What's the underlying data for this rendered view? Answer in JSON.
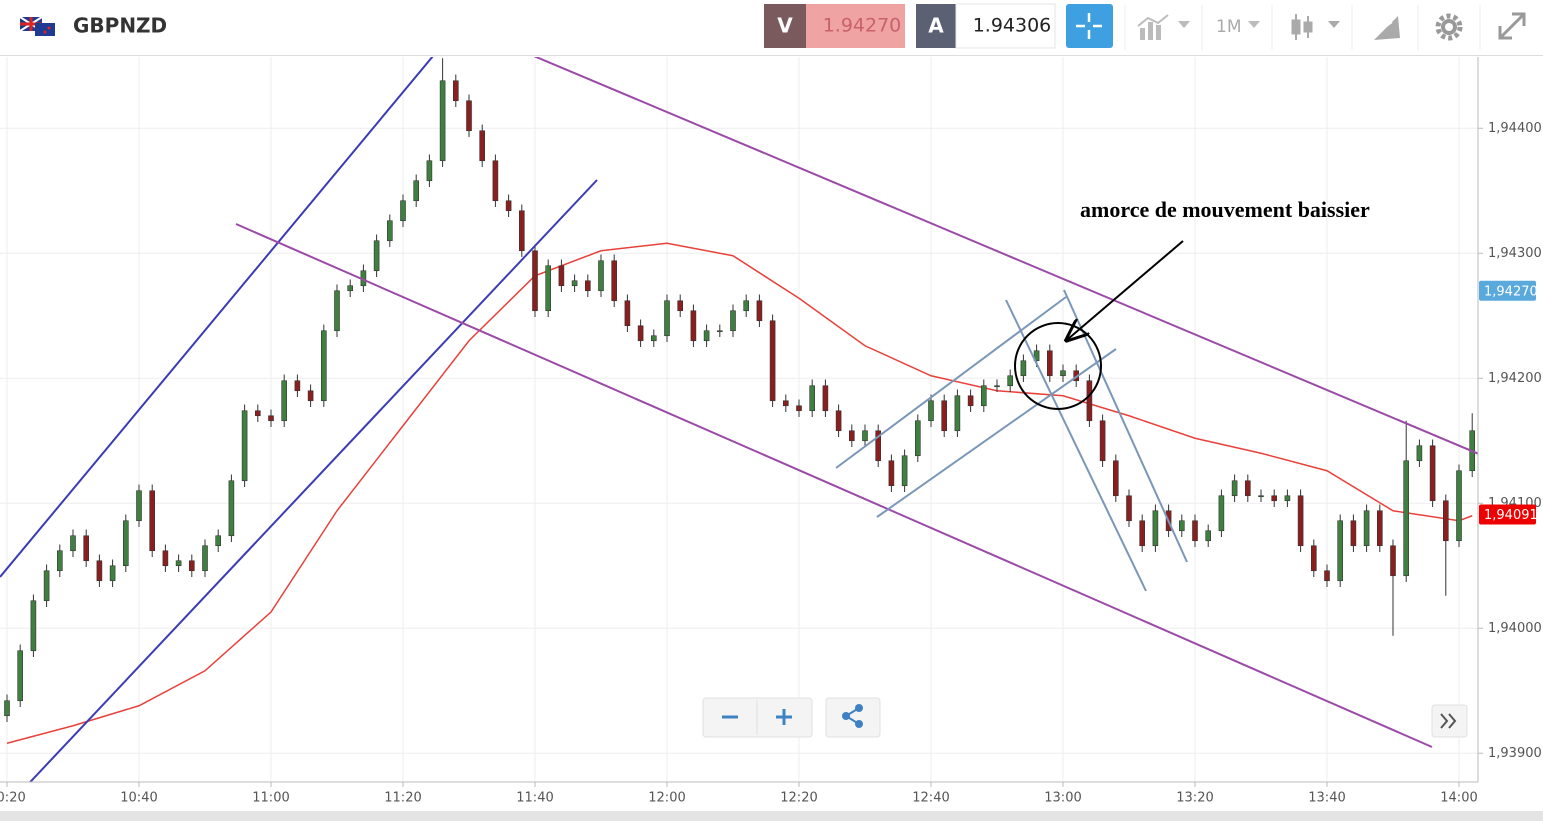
{
  "toolbar": {
    "symbol": "GBPNZD",
    "sell_label": "V",
    "sell_price": "1.94270",
    "buy_label": "A",
    "buy_price": "1.94306",
    "timeframe": "1M"
  },
  "chart_data": {
    "type": "candlestick",
    "annotation": "amorce de mouvement baissier",
    "x": [
      "10:20",
      "10:22",
      "10:24",
      "10:26",
      "10:28",
      "10:30",
      "10:32",
      "10:34",
      "10:36",
      "10:38",
      "10:40",
      "10:42",
      "10:44",
      "10:46",
      "10:48",
      "10:50",
      "10:52",
      "10:54",
      "10:56",
      "10:58",
      "11:00",
      "11:02",
      "11:04",
      "11:06",
      "11:08",
      "11:10",
      "11:12",
      "11:14",
      "11:16",
      "11:18",
      "11:20",
      "11:22",
      "11:24",
      "11:26",
      "11:28",
      "11:30",
      "11:32",
      "11:34",
      "11:36",
      "11:38",
      "11:40",
      "11:42",
      "11:44",
      "11:46",
      "11:48",
      "11:50",
      "11:52",
      "11:54",
      "11:56",
      "11:58",
      "12:00",
      "12:02",
      "12:04",
      "12:06",
      "12:08",
      "12:10",
      "12:12",
      "12:14",
      "12:16",
      "12:18",
      "12:20",
      "12:22",
      "12:24",
      "12:26",
      "12:28",
      "12:30",
      "12:32",
      "12:34",
      "12:36",
      "12:38",
      "12:40",
      "12:42",
      "12:44",
      "12:46",
      "12:48",
      "12:50",
      "12:52",
      "12:54",
      "12:56",
      "12:58",
      "13:00",
      "13:02",
      "13:04",
      "13:06",
      "13:08",
      "13:10",
      "13:12",
      "13:14",
      "13:16",
      "13:18",
      "13:20",
      "13:22",
      "13:24",
      "13:26",
      "13:28",
      "13:30",
      "13:32",
      "13:34",
      "13:36",
      "13:38",
      "13:40",
      "13:42",
      "13:44",
      "13:46",
      "13:48",
      "13:50",
      "13:52",
      "13:54",
      "13:56",
      "13:58",
      "14:00",
      "14:02"
    ],
    "open": [
      1.9393,
      1.93942,
      1.93982,
      1.94022,
      1.94046,
      1.94062,
      1.94074,
      1.94054,
      1.94038,
      1.9405,
      1.94086,
      1.9411,
      1.94062,
      1.9405,
      1.94054,
      1.94046,
      1.94066,
      1.94074,
      1.94118,
      1.94174,
      1.9417,
      1.94166,
      1.94198,
      1.9419,
      1.94182,
      1.94238,
      1.9427,
      1.94274,
      1.94286,
      1.9431,
      1.94326,
      1.94342,
      1.94358,
      1.94374,
      1.94438,
      1.94422,
      1.94398,
      1.94374,
      1.94342,
      1.94334,
      1.94302,
      1.94254,
      1.9429,
      1.94274,
      1.94278,
      1.9427,
      1.94294,
      1.94262,
      1.94242,
      1.9423,
      1.94234,
      1.94262,
      1.94254,
      1.9423,
      1.94238,
      1.94238,
      1.94254,
      1.94262,
      1.94246,
      1.94182,
      1.94178,
      1.94174,
      1.94194,
      1.94174,
      1.94158,
      1.9415,
      1.94158,
      1.94134,
      1.94114,
      1.94138,
      1.94166,
      1.94182,
      1.94158,
      1.94186,
      1.94178,
      1.94194,
      1.94194,
      1.94202,
      1.94214,
      1.94222,
      1.94202,
      1.94206,
      1.94198,
      1.94166,
      1.94134,
      1.94106,
      1.94086,
      1.94066,
      1.94094,
      1.94078,
      1.94086,
      1.9407,
      1.94078,
      1.94106,
      1.94118,
      1.94106,
      1.94106,
      1.94102,
      1.94106,
      1.94066,
      1.94046,
      1.94038,
      1.94086,
      1.94066,
      1.94094,
      1.94066,
      1.94042,
      1.94134,
      1.94146,
      1.94102,
      1.9407,
      1.94126
    ],
    "high": [
      1.93947,
      1.93987,
      1.94027,
      1.94051,
      1.94067,
      1.94079,
      1.94079,
      1.94059,
      1.94055,
      1.94091,
      1.94115,
      1.94115,
      1.94067,
      1.94059,
      1.94059,
      1.94071,
      1.94079,
      1.94123,
      1.94179,
      1.94179,
      1.94175,
      1.94203,
      1.94203,
      1.94195,
      1.94243,
      1.94275,
      1.94279,
      1.94291,
      1.94315,
      1.94331,
      1.94347,
      1.94363,
      1.94379,
      1.94456,
      1.94443,
      1.94427,
      1.94403,
      1.94379,
      1.94347,
      1.94339,
      1.94307,
      1.94295,
      1.94295,
      1.94283,
      1.94283,
      1.94299,
      1.94299,
      1.94267,
      1.94247,
      1.94239,
      1.94267,
      1.94267,
      1.94259,
      1.94243,
      1.94243,
      1.94259,
      1.94267,
      1.94267,
      1.94251,
      1.94187,
      1.94183,
      1.94199,
      1.94199,
      1.94179,
      1.94163,
      1.94163,
      1.94163,
      1.94139,
      1.94143,
      1.94171,
      1.94187,
      1.94187,
      1.94191,
      1.94191,
      1.94199,
      1.94199,
      1.94207,
      1.94219,
      1.94227,
      1.94227,
      1.94211,
      1.94211,
      1.94203,
      1.94171,
      1.94139,
      1.94111,
      1.94091,
      1.94099,
      1.94099,
      1.94091,
      1.94091,
      1.94083,
      1.94111,
      1.94123,
      1.94123,
      1.94111,
      1.94111,
      1.94111,
      1.94111,
      1.94071,
      1.94051,
      1.94091,
      1.94091,
      1.94099,
      1.94099,
      1.94071,
      1.94166,
      1.94151,
      1.94151,
      1.94107,
      1.94131,
      1.94172
    ],
    "low": [
      1.93925,
      1.93937,
      1.93977,
      1.94017,
      1.94041,
      1.94057,
      1.94049,
      1.94033,
      1.94033,
      1.94045,
      1.94081,
      1.94057,
      1.94045,
      1.94045,
      1.94041,
      1.94041,
      1.94061,
      1.94069,
      1.94113,
      1.94165,
      1.94161,
      1.94161,
      1.94185,
      1.94177,
      1.94177,
      1.94233,
      1.94265,
      1.94269,
      1.94281,
      1.94305,
      1.94321,
      1.94337,
      1.94353,
      1.94369,
      1.94417,
      1.94393,
      1.94369,
      1.94337,
      1.94329,
      1.94297,
      1.94249,
      1.94249,
      1.94269,
      1.94269,
      1.94265,
      1.94265,
      1.94257,
      1.94237,
      1.94225,
      1.94225,
      1.94229,
      1.94249,
      1.94225,
      1.94225,
      1.94233,
      1.94233,
      1.94249,
      1.94241,
      1.94177,
      1.94173,
      1.94169,
      1.94169,
      1.94169,
      1.94153,
      1.94145,
      1.94145,
      1.94129,
      1.94109,
      1.94109,
      1.94133,
      1.94161,
      1.94153,
      1.94153,
      1.94173,
      1.94173,
      1.94189,
      1.94189,
      1.94197,
      1.94209,
      1.94197,
      1.94197,
      1.94193,
      1.94161,
      1.94129,
      1.94101,
      1.94081,
      1.94061,
      1.94061,
      1.94073,
      1.94073,
      1.94065,
      1.94065,
      1.94073,
      1.94101,
      1.94101,
      1.94101,
      1.94097,
      1.94097,
      1.94061,
      1.94041,
      1.94033,
      1.94033,
      1.94061,
      1.94061,
      1.94061,
      1.93994,
      1.94037,
      1.94129,
      1.94097,
      1.94026,
      1.94065,
      1.94121
    ],
    "close": [
      1.93942,
      1.93982,
      1.94022,
      1.94046,
      1.94062,
      1.94074,
      1.94054,
      1.94038,
      1.9405,
      1.94086,
      1.9411,
      1.94062,
      1.9405,
      1.94054,
      1.94046,
      1.94066,
      1.94074,
      1.94118,
      1.94174,
      1.9417,
      1.94166,
      1.94198,
      1.9419,
      1.94182,
      1.94238,
      1.9427,
      1.94274,
      1.94286,
      1.9431,
      1.94326,
      1.94342,
      1.94358,
      1.94374,
      1.94438,
      1.94422,
      1.94398,
      1.94374,
      1.94342,
      1.94334,
      1.94302,
      1.94254,
      1.9429,
      1.94274,
      1.94278,
      1.9427,
      1.94294,
      1.94262,
      1.94242,
      1.9423,
      1.94234,
      1.94262,
      1.94254,
      1.9423,
      1.94238,
      1.94238,
      1.94254,
      1.94262,
      1.94246,
      1.94182,
      1.94178,
      1.94174,
      1.94194,
      1.94174,
      1.94158,
      1.9415,
      1.94158,
      1.94134,
      1.94114,
      1.94138,
      1.94166,
      1.94182,
      1.94158,
      1.94186,
      1.94178,
      1.94194,
      1.94194,
      1.94202,
      1.94214,
      1.94222,
      1.94202,
      1.94206,
      1.94198,
      1.94166,
      1.94134,
      1.94106,
      1.94086,
      1.94066,
      1.94094,
      1.94078,
      1.94086,
      1.9407,
      1.94078,
      1.94106,
      1.94118,
      1.94106,
      1.94106,
      1.94102,
      1.94106,
      1.94066,
      1.94046,
      1.94038,
      1.94086,
      1.94066,
      1.94094,
      1.94066,
      1.94042,
      1.94134,
      1.94146,
      1.94102,
      1.9407,
      1.94126,
      1.94158
    ],
    "up_color": "#3f7f3f",
    "down_color": "#8a1f1f",
    "ma": {
      "color": "#e8403a",
      "x": [
        "10:20",
        "10:30",
        "10:40",
        "10:50",
        "11:00",
        "11:10",
        "11:20",
        "11:30",
        "11:40",
        "11:50",
        "12:00",
        "12:10",
        "12:20",
        "12:30",
        "12:40",
        "12:50",
        "13:00",
        "13:10",
        "13:20",
        "13:30",
        "13:40",
        "13:50",
        "14:00",
        "14:02"
      ],
      "values": [
        1.93908,
        1.93922,
        1.93938,
        1.93966,
        1.94013,
        1.94094,
        1.94162,
        1.9423,
        1.94282,
        1.94302,
        1.94308,
        1.94298,
        1.94264,
        1.94226,
        1.94202,
        1.9419,
        1.94186,
        1.9417,
        1.94152,
        1.9414,
        1.94126,
        1.94094,
        1.94086,
        1.9409
      ]
    },
    "price_marks": [
      {
        "value": 1.9427,
        "label": "1,94270",
        "color": "#5aa9dd"
      },
      {
        "value": 1.94091,
        "label": "1,94091",
        "color": "#ee0000"
      }
    ],
    "ylim": [
      1.93877,
      1.94457
    ],
    "yticks": [
      {
        "value": 1.939,
        "label": "1,93900"
      },
      {
        "value": 1.94,
        "label": "1,94000"
      },
      {
        "value": 1.941,
        "label": "1,94100"
      },
      {
        "value": 1.942,
        "label": "1,94200"
      },
      {
        "value": 1.943,
        "label": "1,94300"
      },
      {
        "value": 1.944,
        "label": "1,94400"
      }
    ],
    "xticks": [
      "10:20",
      "10:40",
      "11:00",
      "11:20",
      "11:40",
      "12:00",
      "12:20",
      "12:40",
      "13:00",
      "13:20",
      "13:40",
      "14:00"
    ],
    "grid": true
  }
}
